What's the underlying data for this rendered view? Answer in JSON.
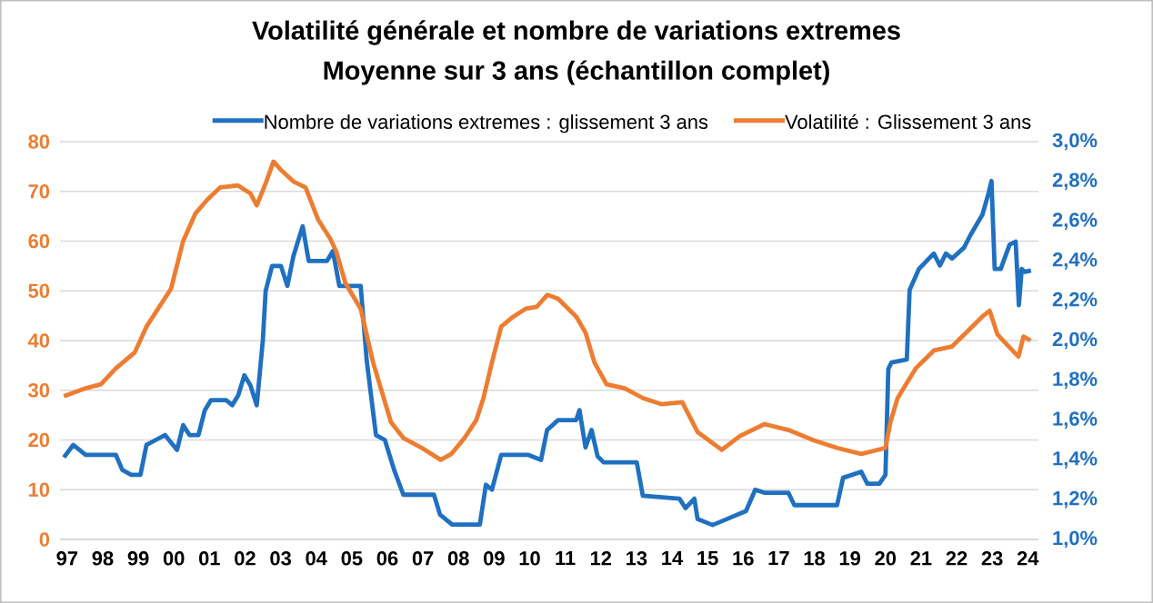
{
  "chart_data": {
    "type": "line",
    "title": "Volatilité générale et nombre de variations extremes",
    "subtitle": "Moyenne sur 3 ans (échantillon complet)",
    "xlim": [
      1996.8,
      2024.3
    ],
    "xticks": [
      {
        "value": 1997,
        "label": "97"
      },
      {
        "value": 1998,
        "label": "98"
      },
      {
        "value": 1999,
        "label": "99"
      },
      {
        "value": 2000,
        "label": "00"
      },
      {
        "value": 2001,
        "label": "01"
      },
      {
        "value": 2002,
        "label": "02"
      },
      {
        "value": 2003,
        "label": "03"
      },
      {
        "value": 2004,
        "label": "04"
      },
      {
        "value": 2005,
        "label": "05"
      },
      {
        "value": 2006,
        "label": "06"
      },
      {
        "value": 2007,
        "label": "07"
      },
      {
        "value": 2008,
        "label": "08"
      },
      {
        "value": 2009,
        "label": "09"
      },
      {
        "value": 2010,
        "label": "10"
      },
      {
        "value": 2011,
        "label": "11"
      },
      {
        "value": 2012,
        "label": "12"
      },
      {
        "value": 2013,
        "label": "13"
      },
      {
        "value": 2014,
        "label": "14"
      },
      {
        "value": 2015,
        "label": "15"
      },
      {
        "value": 2016,
        "label": "16"
      },
      {
        "value": 2017,
        "label": "17"
      },
      {
        "value": 2018,
        "label": "18"
      },
      {
        "value": 2019,
        "label": "19"
      },
      {
        "value": 2020,
        "label": "20"
      },
      {
        "value": 2021,
        "label": "21"
      },
      {
        "value": 2022,
        "label": "22"
      },
      {
        "value": 2023,
        "label": "23"
      },
      {
        "value": 2024,
        "label": "24"
      }
    ],
    "ylim": [
      0,
      80
    ],
    "yticks": [
      0,
      10,
      20,
      30,
      40,
      50,
      60,
      70,
      80
    ],
    "y2lim": [
      1.0,
      3.0
    ],
    "y2ticks": [
      {
        "value": 1.0,
        "label": "1,0%"
      },
      {
        "value": 1.2,
        "label": "1,2%"
      },
      {
        "value": 1.4,
        "label": "1,4%"
      },
      {
        "value": 1.6,
        "label": "1,6%"
      },
      {
        "value": 1.8,
        "label": "1,8%"
      },
      {
        "value": 2.0,
        "label": "2,0%"
      },
      {
        "value": 2.2,
        "label": "2,2%"
      },
      {
        "value": 2.4,
        "label": "2,4%"
      },
      {
        "value": 2.6,
        "label": "2,6%"
      },
      {
        "value": 2.8,
        "label": "2,8%"
      },
      {
        "value": 3.0,
        "label": "3,0%"
      }
    ],
    "grid": "y",
    "legend": "top",
    "series": [
      {
        "name": "Nombre de variations  extremes : glissement 3 ans",
        "color": "#1f70c1",
        "axis": "y",
        "x": [
          1996.91,
          1997.17,
          1997.52,
          1997.95,
          1998.37,
          1998.55,
          1998.8,
          1999.06,
          1999.23,
          1999.49,
          1999.75,
          2000.09,
          2000.26,
          2000.44,
          2000.69,
          2000.87,
          2001.04,
          2001.47,
          2001.64,
          2001.81,
          2001.98,
          2002.15,
          2002.33,
          2002.5,
          2002.58,
          2002.76,
          2003.01,
          2003.19,
          2003.36,
          2003.62,
          2003.79,
          2004.3,
          2004.47,
          2004.65,
          2004.9,
          2005.25,
          2005.42,
          2005.68,
          2005.93,
          2006.19,
          2006.45,
          2006.97,
          2007.31,
          2007.48,
          2007.82,
          2008.6,
          2008.77,
          2008.94,
          2009.2,
          2009.54,
          2009.97,
          2010.32,
          2010.49,
          2010.8,
          2011.31,
          2011.4,
          2011.57,
          2011.74,
          2011.91,
          2012.08,
          2013.01,
          2013.18,
          2014.21,
          2014.38,
          2014.63,
          2014.72,
          2015.14,
          2015.48,
          2016.08,
          2016.34,
          2016.59,
          2017.27,
          2017.44,
          2018.64,
          2018.81,
          2019.32,
          2019.49,
          2019.83,
          2020.0,
          2020.08,
          2020.17,
          2020.6,
          2020.68,
          2020.94,
          2021.36,
          2021.53,
          2021.7,
          2021.87,
          2022.21,
          2022.38,
          2022.73,
          2022.9,
          2022.98,
          2023.07,
          2023.24,
          2023.49,
          2023.66,
          2023.75,
          2023.83,
          2023.92,
          2024.09
        ],
        "values": [
          16.5,
          19,
          17,
          17,
          17,
          14,
          13,
          13,
          19,
          20,
          21,
          18,
          23,
          21,
          21,
          26,
          28,
          28,
          27,
          29,
          33,
          31,
          27,
          40,
          50,
          55,
          55,
          51,
          57,
          63,
          56,
          56,
          58,
          51,
          51,
          51,
          36,
          21,
          20,
          14,
          9,
          9,
          9,
          5,
          3,
          3,
          11,
          10,
          17,
          17,
          17,
          16,
          22,
          24,
          24,
          26,
          18.5,
          22,
          16.7,
          15.5,
          15.5,
          8.8,
          8.2,
          6.3,
          8.2,
          4.1,
          2.9,
          3.9,
          5.7,
          10,
          9.4,
          9.4,
          6.9,
          6.9,
          12.4,
          13.6,
          11.2,
          11.2,
          13,
          34.3,
          35.6,
          36.2,
          50.2,
          54.4,
          57.5,
          55.1,
          57.5,
          56.5,
          58.7,
          61.1,
          65.4,
          69.7,
          72.1,
          54.4,
          54.4,
          59.3,
          59.9,
          47.1,
          54.4,
          53.8,
          54.1
        ]
      },
      {
        "name": "Volatilité : Glissement 3 ans",
        "color": "#ed7d31",
        "axis": "y2",
        "x": [
          1996.91,
          1997.52,
          1997.95,
          1998.37,
          1998.9,
          1999.23,
          1999.92,
          2000.26,
          2000.61,
          2000.95,
          2001.3,
          2001.8,
          2002.15,
          2002.33,
          2002.6,
          2002.8,
          2003.0,
          2003.36,
          2003.7,
          2004.05,
          2004.4,
          2004.56,
          2004.82,
          2005.25,
          2005.6,
          2006.1,
          2006.45,
          2006.97,
          2007.5,
          2007.8,
          2008.17,
          2008.5,
          2008.7,
          2008.94,
          2009.2,
          2009.54,
          2009.89,
          2010.2,
          2010.5,
          2010.8,
          2011.31,
          2011.57,
          2011.82,
          2012.16,
          2012.67,
          2013.19,
          2013.7,
          2014.29,
          2014.72,
          2015.4,
          2015.91,
          2016.6,
          2017.28,
          2017.96,
          2018.64,
          2019.32,
          2020.0,
          2020.14,
          2020.34,
          2020.85,
          2021.36,
          2021.87,
          2022.21,
          2022.72,
          2022.93,
          2023.15,
          2023.57,
          2023.74,
          2023.88,
          2024.08
        ],
        "values": [
          1.72,
          1.76,
          1.78,
          1.86,
          1.94,
          2.07,
          2.26,
          2.5,
          2.64,
          2.71,
          2.77,
          2.78,
          2.74,
          2.68,
          2.8,
          2.9,
          2.86,
          2.8,
          2.77,
          2.61,
          2.51,
          2.45,
          2.29,
          2.16,
          1.89,
          1.59,
          1.51,
          1.46,
          1.4,
          1.43,
          1.51,
          1.6,
          1.71,
          1.89,
          2.07,
          2.12,
          2.16,
          2.17,
          2.23,
          2.21,
          2.12,
          2.04,
          1.89,
          1.78,
          1.76,
          1.71,
          1.68,
          1.69,
          1.54,
          1.45,
          1.52,
          1.58,
          1.55,
          1.5,
          1.46,
          1.43,
          1.46,
          1.59,
          1.71,
          1.86,
          1.95,
          1.97,
          2.03,
          2.12,
          2.15,
          2.03,
          1.95,
          1.92,
          2.02,
          2.0
        ]
      }
    ]
  }
}
